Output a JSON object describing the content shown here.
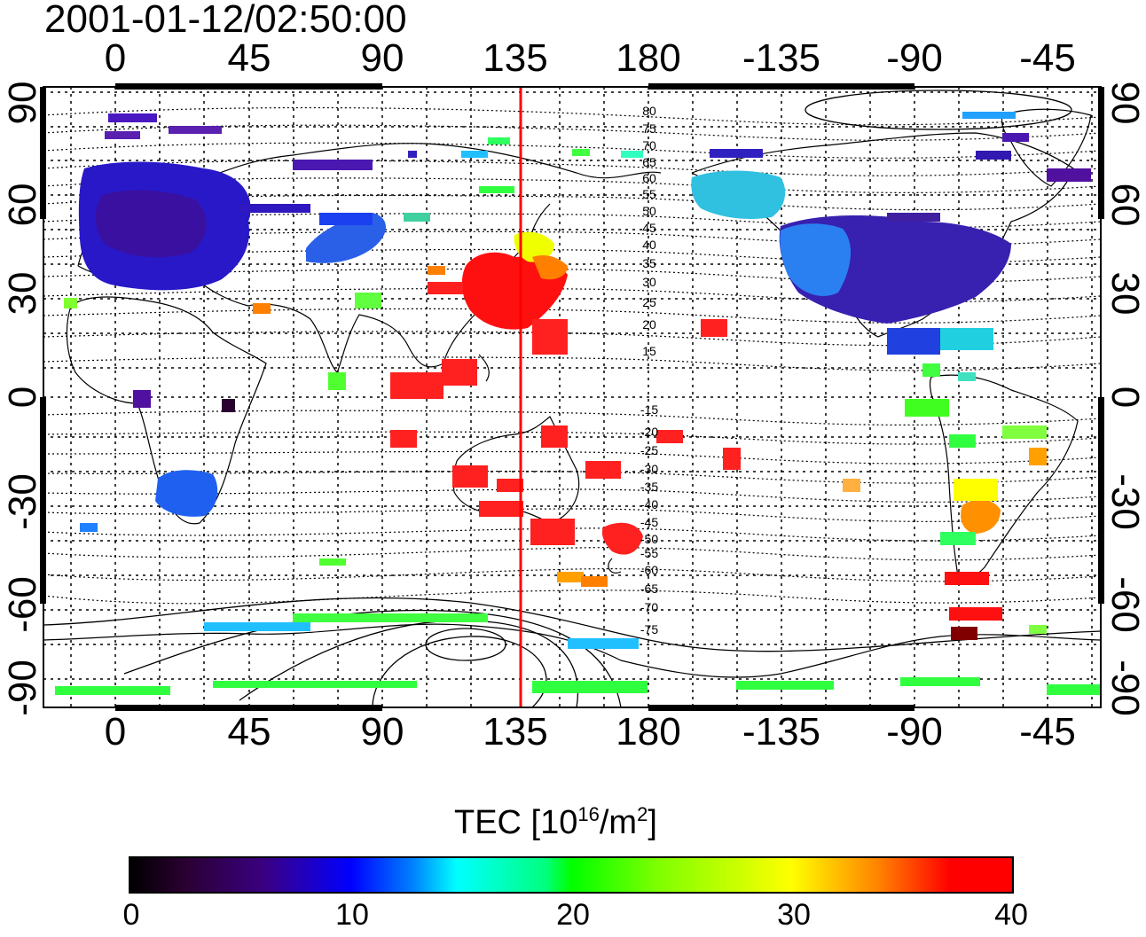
{
  "timestamp": "2001-01-12/02:50:00",
  "map": {
    "x_ticks": [
      "0",
      "45",
      "90",
      "135",
      "180",
      "-135",
      "-90",
      "-45"
    ],
    "y_ticks": [
      "90",
      "60",
      "30",
      "0",
      "-30",
      "-60",
      "-90"
    ],
    "contour_labels": [
      "80",
      "75",
      "70",
      "65",
      "60",
      "55",
      "50",
      "45",
      "40",
      "35",
      "30",
      "25",
      "20",
      "15",
      "-15",
      "-20",
      "-25",
      "-30",
      "-35",
      "-40",
      "-45",
      "-50",
      "-55",
      "-60",
      "-65",
      "-70",
      "-75"
    ],
    "highlight_line_color": "#ff0000"
  },
  "colorbar": {
    "title": "TEC  [10",
    "title_exp": "16",
    "title_unit": "/m",
    "title_unit_exp": "2",
    "title_end": "]",
    "ticks": [
      "0",
      "10",
      "20",
      "30",
      "40"
    ],
    "range": [
      0,
      40
    ],
    "palette": [
      "#000000",
      "#3a0080",
      "#0000ff",
      "#00ffff",
      "#00ff00",
      "#ffff00",
      "#ff8000",
      "#ff0000"
    ]
  }
}
